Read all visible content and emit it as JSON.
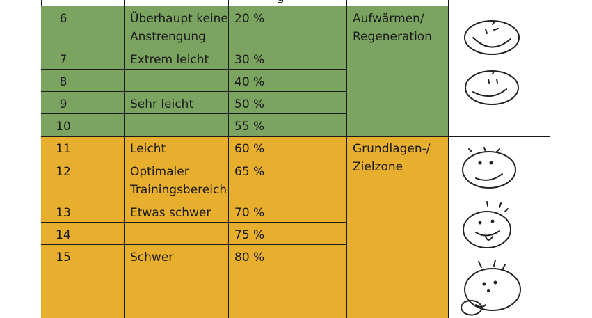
{
  "header_fragment": "g",
  "rows": [
    {
      "num": "6",
      "desc": "Überhaupt keine Anstrengung",
      "pct": "20 %"
    },
    {
      "num": "7",
      "desc": "Extrem leicht",
      "pct": "30 %"
    },
    {
      "num": "8",
      "desc": "",
      "pct": "40 %"
    },
    {
      "num": "9",
      "desc": "Sehr leicht",
      "pct": "50 %"
    },
    {
      "num": "10",
      "desc": "",
      "pct": "55 %"
    },
    {
      "num": "11",
      "desc": "Leicht",
      "pct": "60 %"
    },
    {
      "num": "12",
      "desc": "Optimaler Trainingsbereich",
      "pct": "65 %"
    },
    {
      "num": "13",
      "desc": "Etwas schwer",
      "pct": "70 %"
    },
    {
      "num": "14",
      "desc": "",
      "pct": "75 %"
    },
    {
      "num": "15",
      "desc": "Schwer",
      "pct": "80 %"
    }
  ],
  "zones": [
    {
      "label": "Aufwärmen/ Regeneration",
      "color": "#7ca461"
    },
    {
      "label": "Grundlagen-/ Zielzone",
      "color": "#e8ae2e"
    }
  ],
  "icons": [
    "smiley-relaxed",
    "smiley-relaxed",
    "smiley-sweat",
    "smiley-tongue-sweat",
    "smiley-exhausted-sweat"
  ]
}
